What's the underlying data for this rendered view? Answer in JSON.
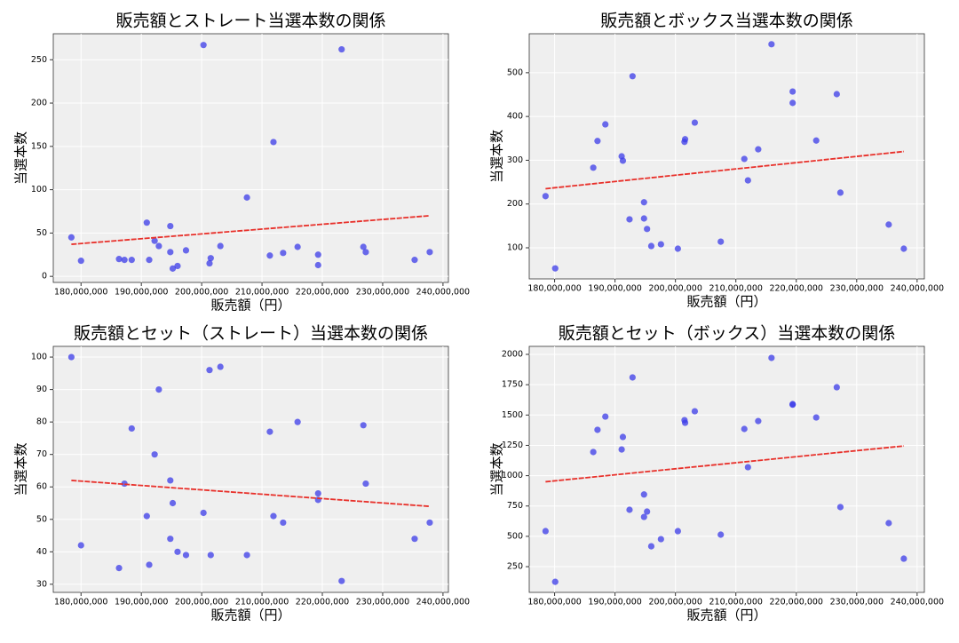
{
  "chart_data": [
    {
      "type": "scatter",
      "title": "販売額とストレート当選本数の関係",
      "x_label": "販売額（円）",
      "y_label": "当選本数",
      "color": "#3b3be8",
      "grid": true,
      "xlim": [
        175400000,
        240900000
      ],
      "ylim": [
        -7,
        280
      ],
      "xticks": [
        {
          "value": 180000000,
          "label": "180,000,000"
        },
        {
          "value": 190000000,
          "label": "190,000,000"
        },
        {
          "value": 200000000,
          "label": "200,000,000"
        },
        {
          "value": 210000000,
          "label": "210,000,000"
        },
        {
          "value": 220000000,
          "label": "220,000,000"
        },
        {
          "value": 230000000,
          "label": "230,000,000"
        },
        {
          "value": 240000000,
          "label": "240,000,000"
        }
      ],
      "yticks": [
        0,
        50,
        100,
        150,
        200,
        250
      ],
      "x": [
        178400000,
        180000000,
        186300000,
        187200000,
        188400000,
        190900000,
        191300000,
        192200000,
        192900000,
        194800000,
        194800000,
        195200000,
        196000000,
        197400000,
        200300000,
        201300000,
        201500000,
        203100000,
        207500000,
        211300000,
        211900000,
        213500000,
        215900000,
        219300000,
        219300000,
        223200000,
        226800000,
        227200000,
        235300000,
        237800000
      ],
      "values": [
        45,
        18,
        20,
        19,
        19,
        62,
        19,
        41,
        35,
        58,
        28,
        9,
        12,
        30,
        267,
        15,
        21,
        35,
        91,
        24,
        155,
        27,
        34,
        25,
        13,
        262,
        34,
        28,
        19,
        28
      ],
      "trendline": {
        "x": [
          178400000,
          237800000
        ],
        "values": [
          37,
          70
        ],
        "color": "#e8302a"
      }
    },
    {
      "type": "scatter",
      "title": "販売額とボックス当選本数の関係",
      "x_label": "販売額（円）",
      "y_label": "当選本数",
      "color": "#3b3be8",
      "grid": true,
      "xlim": [
        175800000,
        241200000
      ],
      "ylim": [
        29,
        589
      ],
      "xticks": [
        {
          "value": 180000000,
          "label": "180,000,000"
        },
        {
          "value": 190000000,
          "label": "190,000,000"
        },
        {
          "value": 200000000,
          "label": "200,000,000"
        },
        {
          "value": 210000000,
          "label": "210,000,000"
        },
        {
          "value": 220000000,
          "label": "220,000,000"
        },
        {
          "value": 230000000,
          "label": "230,000,000"
        },
        {
          "value": 240000000,
          "label": "240,000,000"
        }
      ],
      "yticks": [
        100,
        200,
        300,
        400,
        500
      ],
      "x": [
        178500000,
        180100000,
        186400000,
        187100000,
        188400000,
        191100000,
        191300000,
        192400000,
        192900000,
        194800000,
        194800000,
        195300000,
        196000000,
        197600000,
        200400000,
        201500000,
        201600000,
        203200000,
        207500000,
        211400000,
        212000000,
        213700000,
        215900000,
        219400000,
        219400000,
        223300000,
        226700000,
        227300000,
        235300000,
        237800000
      ],
      "values": [
        218,
        53,
        283,
        344,
        382,
        309,
        299,
        165,
        492,
        204,
        167,
        143,
        104,
        108,
        98,
        342,
        348,
        386,
        114,
        303,
        254,
        325,
        565,
        457,
        431,
        345,
        451,
        226,
        153,
        98
      ],
      "trendline": {
        "x": [
          178500000,
          237800000
        ],
        "values": [
          235,
          320
        ],
        "color": "#e8302a"
      }
    },
    {
      "type": "scatter",
      "title": "販売額とセット（ストレート）当選本数の関係",
      "x_label": "販売額（円）",
      "y_label": "当選本数",
      "color": "#3b3be8",
      "grid": true,
      "xlim": [
        175400000,
        240900000
      ],
      "ylim": [
        27.5,
        103.3
      ],
      "xticks": [
        {
          "value": 180000000,
          "label": "180,000,000"
        },
        {
          "value": 190000000,
          "label": "190,000,000"
        },
        {
          "value": 200000000,
          "label": "200,000,000"
        },
        {
          "value": 210000000,
          "label": "210,000,000"
        },
        {
          "value": 220000000,
          "label": "220,000,000"
        },
        {
          "value": 230000000,
          "label": "230,000,000"
        },
        {
          "value": 240000000,
          "label": "240,000,000"
        }
      ],
      "yticks": [
        30,
        40,
        50,
        60,
        70,
        80,
        90,
        100
      ],
      "x": [
        178400000,
        180000000,
        186300000,
        187200000,
        188400000,
        190900000,
        191300000,
        192200000,
        192900000,
        194800000,
        194800000,
        195200000,
        196000000,
        197400000,
        200300000,
        201300000,
        201500000,
        203100000,
        207500000,
        211300000,
        211900000,
        213500000,
        215900000,
        219300000,
        219300000,
        223200000,
        226800000,
        227200000,
        235300000,
        237800000
      ],
      "values": [
        100,
        42,
        35,
        61,
        78,
        51,
        36,
        70,
        90,
        62,
        44,
        55,
        40,
        39,
        52,
        96,
        39,
        97,
        39,
        77,
        51,
        49,
        80,
        58,
        56,
        31,
        79,
        61,
        44,
        49
      ],
      "trendline": {
        "x": [
          178400000,
          237800000
        ],
        "values": [
          62,
          54
        ],
        "color": "#e8302a"
      }
    },
    {
      "type": "scatter",
      "title": "販売額とセット（ボックス）当選本数の関係",
      "x_label": "販売額（円）",
      "y_label": "当選本数",
      "color": "#3b3be8",
      "grid": true,
      "xlim": [
        175800000,
        241200000
      ],
      "ylim": [
        38,
        2066
      ],
      "xticks": [
        {
          "value": 180000000,
          "label": "180,000,000"
        },
        {
          "value": 190000000,
          "label": "190,000,000"
        },
        {
          "value": 200000000,
          "label": "200,000,000"
        },
        {
          "value": 210000000,
          "label": "210,000,000"
        },
        {
          "value": 220000000,
          "label": "220,000,000"
        },
        {
          "value": 230000000,
          "label": "230,000,000"
        },
        {
          "value": 240000000,
          "label": "240,000,000"
        }
      ],
      "yticks": [
        250,
        500,
        750,
        1000,
        1250,
        1500,
        1750,
        2000
      ],
      "x": [
        178500000,
        180100000,
        186400000,
        187100000,
        188400000,
        191100000,
        191300000,
        192400000,
        192900000,
        194800000,
        194800000,
        195300000,
        196000000,
        197600000,
        200400000,
        201500000,
        201600000,
        203200000,
        207500000,
        211400000,
        212000000,
        213700000,
        215900000,
        219400000,
        219400000,
        223300000,
        226700000,
        227300000,
        235300000,
        237800000
      ],
      "values": [
        543,
        125,
        1195,
        1378,
        1487,
        1216,
        1319,
        719,
        1810,
        845,
        660,
        704,
        418,
        477,
        543,
        1458,
        1436,
        1531,
        514,
        1385,
        1070,
        1450,
        1971,
        1590,
        1585,
        1480,
        1729,
        741,
        609,
        316
      ],
      "trendline": {
        "x": [
          178500000,
          237800000
        ],
        "values": [
          950,
          1245
        ],
        "color": "#e8302a"
      }
    }
  ]
}
